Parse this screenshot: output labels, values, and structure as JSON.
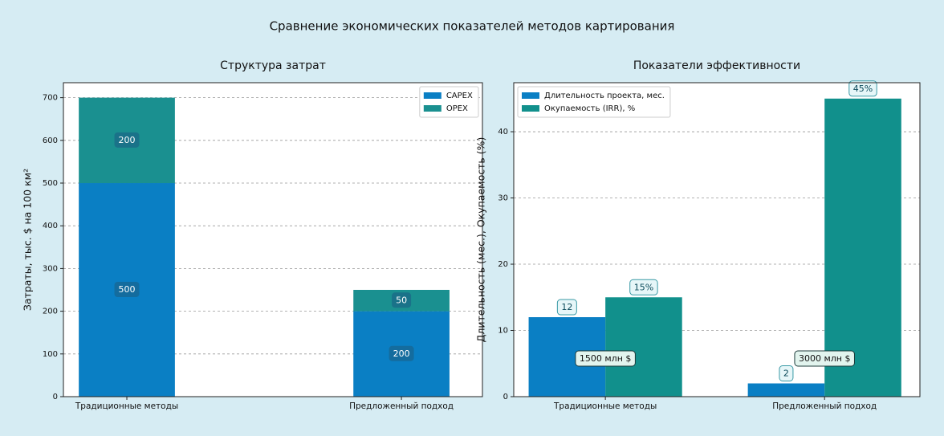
{
  "title": "Сравнение экономических показателей методов картирования",
  "chart_data": [
    {
      "type": "bar",
      "stacked": true,
      "title": "Структура затрат",
      "ylabel": "Затраты, тыс. $ на 100 км²",
      "categories": [
        "Традиционные методы",
        "Предложенный подход"
      ],
      "series": [
        {
          "name": "CAPEX",
          "color": "#0a7fc4",
          "values": [
            500,
            200
          ]
        },
        {
          "name": "OPEX",
          "color": "#1a9090",
          "values": [
            200,
            50
          ]
        }
      ],
      "ylim": [
        0,
        735
      ],
      "yticks": [
        0,
        100,
        200,
        300,
        400,
        500,
        600,
        700
      ],
      "grid": true,
      "legend": "upper right"
    },
    {
      "type": "bar",
      "stacked": false,
      "title": "Показатели эффективности",
      "ylabel": "Длительность (мес.), Окупаемость (%)",
      "categories": [
        "Традиционные методы",
        "Предложенный подход"
      ],
      "series": [
        {
          "name": "Длительность проекта, мес.",
          "color": "#0a7fc4",
          "values": [
            12,
            2
          ]
        },
        {
          "name": "Окупаемость (IRR), %",
          "color": "#11908c",
          "values": [
            15,
            45
          ],
          "value_labels": [
            "15%",
            "45%"
          ]
        }
      ],
      "annotations": [
        "1500 млн $",
        "3000 млн $"
      ],
      "ylim": [
        0,
        47.4
      ],
      "yticks": [
        0,
        10,
        20,
        30,
        40
      ],
      "grid": true,
      "legend": "upper left"
    }
  ]
}
